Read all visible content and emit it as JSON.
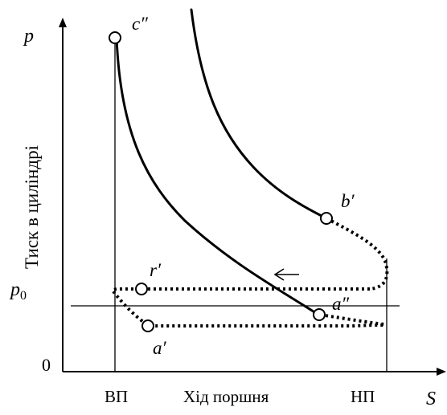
{
  "axes": {
    "y_symbol": "p",
    "x_symbol": "S",
    "y_label": "Тиск в циліндрі",
    "x_label": "Хід поршня",
    "origin": "0",
    "p0_base": "p",
    "p0_sub": "0",
    "tdc_label": "ВП",
    "bdc_label": "НП"
  },
  "points": {
    "c2": "c″",
    "b1": "b′",
    "r1": "r′",
    "a2": "a″",
    "a1": "a′"
  },
  "arrow_direction": "left"
}
